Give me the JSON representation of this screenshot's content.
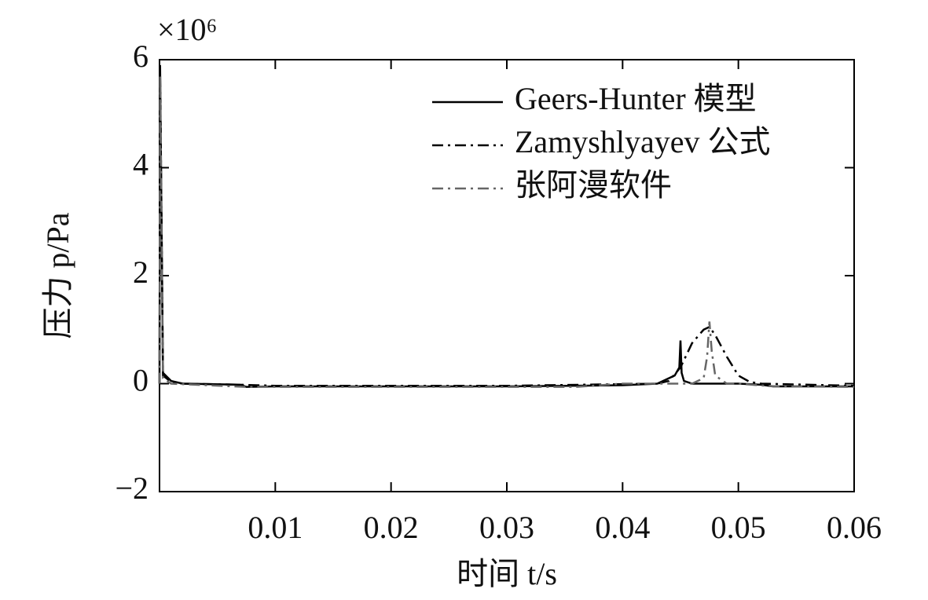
{
  "chart_data": {
    "type": "line",
    "y_multiplier": "×10⁶",
    "xlabel": "时间 t/s",
    "ylabel": "压力 p/Pa",
    "xlim": [
      0,
      0.06
    ],
    "ylim": [
      -2,
      6
    ],
    "xticks": [
      0.01,
      0.02,
      0.03,
      0.04,
      0.05,
      0.06
    ],
    "yticks": [
      {
        "value": -2,
        "label": "−2"
      },
      0,
      2,
      4,
      6
    ],
    "legend": "upper-right",
    "series": [
      {
        "name": "Geers-Hunter 模型",
        "color": "#000000",
        "dash": "solid",
        "x": [
          0,
          5e-05,
          0.0003,
          0.001,
          0.002,
          0.007,
          0.0075,
          0.01,
          0.03,
          0.04,
          0.043,
          0.0445,
          0.0449,
          0.045,
          0.0451,
          0.0453,
          0.046,
          0.05,
          0.052,
          0.053,
          0.06
        ],
        "values": [
          0,
          5.9,
          0.2,
          0.05,
          0,
          -0.02,
          -0.06,
          -0.05,
          -0.05,
          -0.03,
          0,
          0.15,
          0.3,
          0.8,
          0.2,
          0.05,
          0,
          0,
          -0.02,
          -0.05,
          -0.05
        ]
      },
      {
        "name": "Zamyshlyayev 公式",
        "color": "#000000",
        "dash": "dash-dot",
        "x": [
          0,
          5e-05,
          0.0003,
          0.001,
          0.002,
          0.007,
          0.01,
          0.03,
          0.043,
          0.044,
          0.045,
          0.046,
          0.047,
          0.0475,
          0.048,
          0.049,
          0.05,
          0.051,
          0.052,
          0.06
        ],
        "values": [
          0,
          5.8,
          0.15,
          0.03,
          0,
          -0.02,
          -0.04,
          -0.04,
          0,
          0.05,
          0.3,
          0.75,
          1.0,
          1.05,
          0.9,
          0.5,
          0.15,
          0.03,
          0,
          -0.04
        ]
      },
      {
        "name": "张阿漫软件",
        "color": "#666666",
        "dash": "dash-dot",
        "x": [
          0,
          5e-05,
          0.0003,
          0.001,
          0.0075,
          0.01,
          0.036,
          0.04,
          0.046,
          0.047,
          0.0473,
          0.0475,
          0.0477,
          0.048,
          0.049,
          0.05,
          0.053,
          0.06
        ],
        "values": [
          0,
          5.7,
          0.1,
          0,
          -0.06,
          -0.06,
          -0.06,
          0,
          0,
          0.1,
          0.5,
          1.15,
          0.6,
          0.15,
          0,
          0,
          -0.05,
          -0.06
        ]
      }
    ]
  }
}
